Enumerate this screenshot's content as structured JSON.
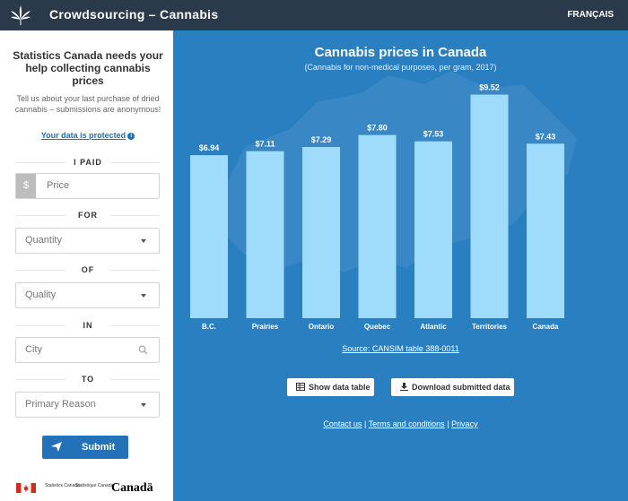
{
  "header": {
    "title": "Crowdsourcing – Cannabis",
    "lang_label": "FRANÇAIS"
  },
  "sidebar": {
    "heading": "Statistics Canada needs your help collecting cannabis prices",
    "subtext": "Tell us about your last purchase of dried cannabis – submissions are anonymous!",
    "privacy_link": "Your data is protected",
    "labels": {
      "paid": "I PAID",
      "for": "FOR",
      "of": "OF",
      "in": "IN",
      "to": "TO"
    },
    "currency_symbol": "$",
    "price_placeholder": "Price",
    "quantity": "Quantity",
    "quality": "Quality",
    "city_placeholder": "City",
    "reason": "Primary Reason",
    "submit_label": "Submit",
    "footer": {
      "stat_en": "Statistics Canada",
      "stat_fr": "Statistique Canada",
      "wordmark": "Canadä"
    }
  },
  "chart_data": {
    "type": "bar",
    "title": "Cannabis prices in Canada",
    "subtitle": "(Cannabis for non-medical purposes, per gram, 2017)",
    "categories": [
      "B.C.",
      "Prairies",
      "Ontario",
      "Quebec",
      "Atlantic",
      "Territories",
      "Canada"
    ],
    "values": [
      6.94,
      7.11,
      7.29,
      7.8,
      7.53,
      9.52,
      7.43
    ],
    "value_labels": [
      "$6.94",
      "$7.11",
      "$7.29",
      "$7.80",
      "$7.53",
      "$9.52",
      "$7.43"
    ],
    "ylim": [
      0,
      10
    ],
    "grid": false,
    "bar_color": "#9fdcfc"
  },
  "main": {
    "source": "Source: CANSIM table 388-0011",
    "show_table": "Show data table",
    "download": "Download submitted data",
    "links": {
      "contact": "Contact us",
      "terms": "Terms and conditions",
      "privacy": "Privacy",
      "sep": "|"
    }
  }
}
